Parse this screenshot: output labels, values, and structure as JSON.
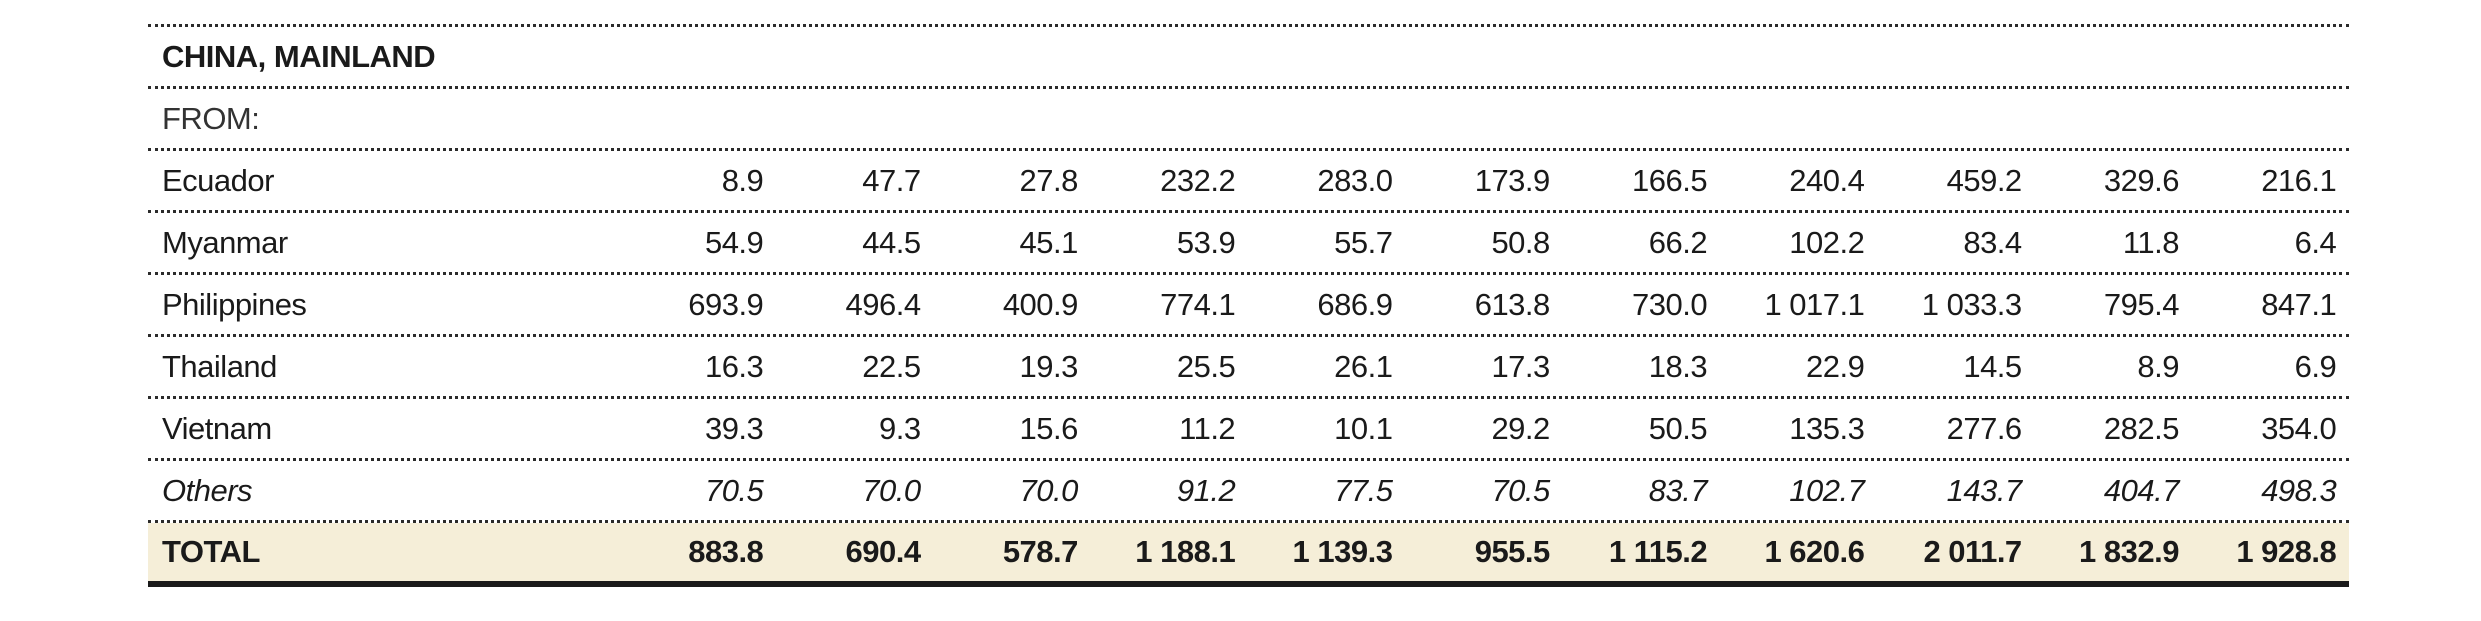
{
  "section_title": "CHINA, MAINLAND",
  "from_label": "FROM:",
  "rows": [
    {
      "label": "Ecuador",
      "values": [
        "8.9",
        "47.7",
        "27.8",
        "232.2",
        "283.0",
        "173.9",
        "166.5",
        "240.4",
        "459.2",
        "329.6",
        "216.1"
      ]
    },
    {
      "label": "Myanmar",
      "values": [
        "54.9",
        "44.5",
        "45.1",
        "53.9",
        "55.7",
        "50.8",
        "66.2",
        "102.2",
        "83.4",
        "11.8",
        "6.4"
      ]
    },
    {
      "label": "Philippines",
      "values": [
        "693.9",
        "496.4",
        "400.9",
        "774.1",
        "686.9",
        "613.8",
        "730.0",
        "1 017.1",
        "1 033.3",
        "795.4",
        "847.1"
      ]
    },
    {
      "label": "Thailand",
      "values": [
        "16.3",
        "22.5",
        "19.3",
        "25.5",
        "26.1",
        "17.3",
        "18.3",
        "22.9",
        "14.5",
        "8.9",
        "6.9"
      ]
    },
    {
      "label": "Vietnam",
      "values": [
        "39.3",
        "9.3",
        "15.6",
        "11.2",
        "10.1",
        "29.2",
        "50.5",
        "135.3",
        "277.6",
        "282.5",
        "354.0"
      ]
    }
  ],
  "others": {
    "label": "Others",
    "values": [
      "70.5",
      "70.0",
      "70.0",
      "91.2",
      "77.5",
      "70.5",
      "83.7",
      "102.7",
      "143.7",
      "404.7",
      "498.3"
    ]
  },
  "total": {
    "label": "TOTAL",
    "values": [
      "883.8",
      "690.4",
      "578.7",
      "1 188.1",
      "1 139.3",
      "955.5",
      "1 115.2",
      "1 620.6",
      "2 011.7",
      "1 832.9",
      "1 928.8"
    ]
  }
}
